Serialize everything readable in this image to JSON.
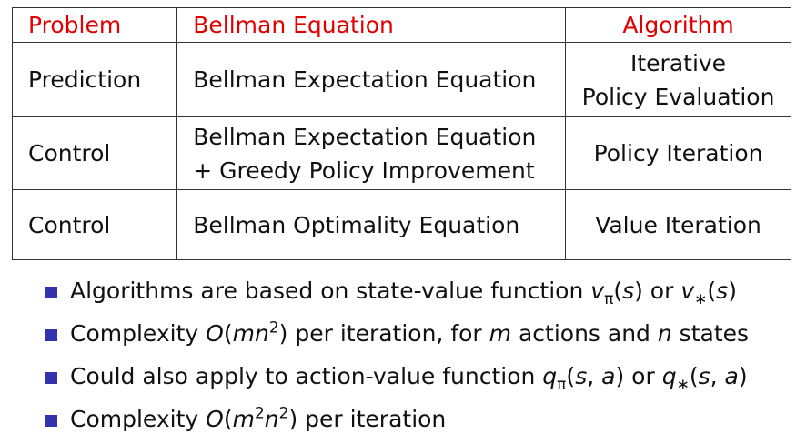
{
  "table": {
    "header": [
      "Problem",
      "Bellman Equation",
      "Algorithm"
    ],
    "rows": [
      [
        [
          "Prediction"
        ],
        [
          "Bellman Expectation Equation"
        ],
        [
          "Iterative",
          "Policy Evaluation"
        ]
      ],
      [
        [
          "Control"
        ],
        [
          "Bellman Expectation Equation",
          "+ Greedy Policy Improvement"
        ],
        [
          "Policy Iteration"
        ]
      ],
      [
        [
          "Control"
        ],
        [
          "Bellman Optimality Equation"
        ],
        [
          "Value Iteration"
        ]
      ]
    ]
  },
  "bullets": [
    [
      "Algorithms are based on state-value function ",
      "v",
      "π",
      "(",
      "s",
      ") or ",
      "v",
      "∗",
      "(",
      "s",
      ")"
    ],
    [
      "Complexity ",
      "O",
      "(",
      "mn",
      "2",
      ") per iteration, for ",
      "m",
      " actions and ",
      "n",
      " states"
    ],
    [
      "Could also apply to action-value function ",
      "q",
      "π",
      "(",
      "s",
      ", ",
      "a",
      ") or ",
      "q",
      "∗",
      "(",
      "s",
      ", ",
      "a",
      ")"
    ],
    [
      "Complexity ",
      "O",
      "(",
      "m",
      "2",
      "n",
      "2",
      ") per iteration"
    ]
  ]
}
